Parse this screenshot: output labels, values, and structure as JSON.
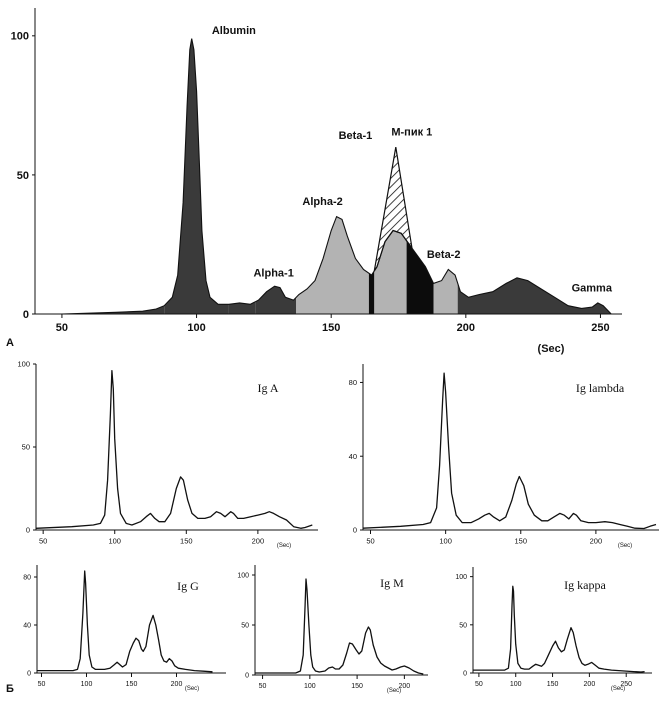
{
  "panel_labels": {
    "a": "A",
    "b": "Б"
  },
  "colors": {
    "ink": "#111111",
    "dark_fill": "#3a3a3a",
    "light_fill": "#b3b3b3",
    "black_fill": "#0c0c0c"
  },
  "chart_data": [
    {
      "id": "A",
      "type": "area",
      "title": "",
      "xlabel": "(Sec)",
      "ylabel": "",
      "xlim": [
        40,
        258
      ],
      "ylim": [
        0,
        110
      ],
      "xticks": [
        50,
        100,
        150,
        200,
        250
      ],
      "yticks": [
        0,
        50,
        100
      ],
      "grid": false,
      "fractions": [
        {
          "name": "",
          "x_range": [
            50,
            88
          ],
          "fill": "dark"
        },
        {
          "name": "Albumin",
          "x_range": [
            88,
            112
          ],
          "fill": "dark"
        },
        {
          "name": "",
          "x_range": [
            112,
            122
          ],
          "fill": "dark"
        },
        {
          "name": "Alpha-1",
          "x_range": [
            122,
            137
          ],
          "fill": "dark"
        },
        {
          "name": "Alpha-2",
          "x_range": [
            137,
            164
          ],
          "fill": "light"
        },
        {
          "name": "",
          "x_range": [
            164,
            166
          ],
          "fill": "black"
        },
        {
          "name": "Beta-1",
          "x_range": [
            166,
            178
          ],
          "fill": "light"
        },
        {
          "name": "",
          "x_range": [
            178,
            188
          ],
          "fill": "black"
        },
        {
          "name": "Beta-2",
          "x_range": [
            188,
            197
          ],
          "fill": "light"
        },
        {
          "name": "Gamma",
          "x_range": [
            197,
            256
          ],
          "fill": "dark"
        }
      ],
      "points": [
        [
          50,
          0
        ],
        [
          60,
          0.3
        ],
        [
          70,
          0.6
        ],
        [
          80,
          1
        ],
        [
          85,
          1.8
        ],
        [
          88,
          3
        ],
        [
          91,
          6
        ],
        [
          93,
          14
        ],
        [
          95,
          40
        ],
        [
          96.5,
          75
        ],
        [
          97.5,
          95
        ],
        [
          98.2,
          99
        ],
        [
          99,
          95
        ],
        [
          100,
          80
        ],
        [
          101,
          55
        ],
        [
          102,
          30
        ],
        [
          103.5,
          12
        ],
        [
          105,
          6
        ],
        [
          108,
          3.5
        ],
        [
          112,
          3.5
        ],
        [
          116,
          4
        ],
        [
          120,
          3.5
        ],
        [
          123,
          5
        ],
        [
          126,
          8
        ],
        [
          129,
          10
        ],
        [
          131,
          9.5
        ],
        [
          133,
          6
        ],
        [
          136,
          5
        ],
        [
          138,
          7
        ],
        [
          141,
          9
        ],
        [
          144,
          12
        ],
        [
          147,
          20
        ],
        [
          150,
          30
        ],
        [
          152,
          35
        ],
        [
          154,
          34
        ],
        [
          156,
          28
        ],
        [
          159,
          20
        ],
        [
          162,
          16
        ],
        [
          165,
          14
        ],
        [
          167,
          17
        ],
        [
          170,
          26
        ],
        [
          173,
          30
        ],
        [
          176,
          29
        ],
        [
          179,
          25
        ],
        [
          182,
          21
        ],
        [
          185,
          17
        ],
        [
          188,
          11
        ],
        [
          191,
          12
        ],
        [
          193.5,
          16
        ],
        [
          196,
          14
        ],
        [
          198,
          8
        ],
        [
          201,
          6
        ],
        [
          205,
          7
        ],
        [
          210,
          8
        ],
        [
          215,
          11
        ],
        [
          219,
          13
        ],
        [
          223,
          12
        ],
        [
          228,
          9
        ],
        [
          233,
          6
        ],
        [
          238,
          3
        ],
        [
          243,
          2
        ],
        [
          247,
          2.5
        ],
        [
          249,
          4
        ],
        [
          251,
          3
        ],
        [
          254,
          0
        ]
      ],
      "m_spike": {
        "name": "M-пик 1",
        "x_range": [
          166,
          180
        ],
        "peak_x": 174,
        "peak_y": 60,
        "fill": "hatched"
      },
      "annotations": [
        {
          "text": "Albumin",
          "x": 99,
          "y": 100
        },
        {
          "text": "Alpha-1",
          "x": 129,
          "y": 12
        },
        {
          "text": "Alpha-2",
          "x": 152,
          "y": 37
        },
        {
          "text": "Beta-1",
          "x": 159,
          "y": 60
        },
        {
          "text": "M-пик 1",
          "x": 174,
          "y": 62
        },
        {
          "text": "Beta-2",
          "x": 194,
          "y": 18
        },
        {
          "text": "Gamma",
          "x": 249,
          "y": 6
        }
      ]
    },
    {
      "id": "IgA",
      "type": "line",
      "title": "Ig A",
      "xlabel": "(Sec)",
      "ylabel": "",
      "xlim": [
        45,
        242
      ],
      "ylim": [
        0,
        100
      ],
      "xticks": [
        50,
        100,
        150,
        200
      ],
      "yticks": [
        0,
        50,
        100
      ],
      "grid": false,
      "points": [
        [
          45,
          1
        ],
        [
          70,
          2
        ],
        [
          85,
          3
        ],
        [
          90,
          4
        ],
        [
          93,
          9
        ],
        [
          95,
          30
        ],
        [
          97,
          70
        ],
        [
          98,
          96
        ],
        [
          99,
          85
        ],
        [
          100,
          55
        ],
        [
          102,
          25
        ],
        [
          104,
          10
        ],
        [
          108,
          4
        ],
        [
          112,
          3
        ],
        [
          118,
          5
        ],
        [
          122,
          8
        ],
        [
          125,
          10
        ],
        [
          128,
          7
        ],
        [
          131,
          5
        ],
        [
          135,
          5
        ],
        [
          139,
          10
        ],
        [
          143,
          25
        ],
        [
          146,
          32
        ],
        [
          148,
          30
        ],
        [
          151,
          18
        ],
        [
          154,
          10
        ],
        [
          158,
          7
        ],
        [
          163,
          7
        ],
        [
          167,
          8
        ],
        [
          171,
          11
        ],
        [
          174,
          10
        ],
        [
          177,
          8
        ],
        [
          181,
          11
        ],
        [
          183,
          10
        ],
        [
          186,
          7
        ],
        [
          190,
          7
        ],
        [
          195,
          8
        ],
        [
          200,
          9
        ],
        [
          205,
          10
        ],
        [
          208,
          11
        ],
        [
          211,
          10
        ],
        [
          215,
          8
        ],
        [
          220,
          6
        ],
        [
          225,
          2
        ],
        [
          230,
          1
        ],
        [
          233,
          1.5
        ],
        [
          238,
          3
        ]
      ]
    },
    {
      "id": "IgLambda",
      "type": "line",
      "title": "Ig lambda",
      "xlabel": "(Sec)",
      "ylabel": "",
      "xlim": [
        45,
        242
      ],
      "ylim": [
        0,
        90
      ],
      "xticks": [
        50,
        100,
        150,
        200
      ],
      "yticks": [
        0,
        40,
        80
      ],
      "grid": false,
      "points": [
        [
          45,
          1
        ],
        [
          70,
          2
        ],
        [
          85,
          3
        ],
        [
          90,
          4
        ],
        [
          94,
          12
        ],
        [
          96,
          35
        ],
        [
          98,
          70
        ],
        [
          99,
          85
        ],
        [
          100,
          75
        ],
        [
          102,
          45
        ],
        [
          104,
          20
        ],
        [
          107,
          8
        ],
        [
          111,
          4
        ],
        [
          117,
          4
        ],
        [
          122,
          6
        ],
        [
          126,
          8
        ],
        [
          129,
          9
        ],
        [
          132,
          7
        ],
        [
          136,
          5
        ],
        [
          140,
          7
        ],
        [
          144,
          16
        ],
        [
          147,
          25
        ],
        [
          149,
          29
        ],
        [
          152,
          24
        ],
        [
          155,
          14
        ],
        [
          159,
          8
        ],
        [
          164,
          5
        ],
        [
          168,
          5
        ],
        [
          172,
          7
        ],
        [
          176,
          9
        ],
        [
          179,
          8
        ],
        [
          182,
          6
        ],
        [
          185,
          9
        ],
        [
          187,
          8
        ],
        [
          190,
          5
        ],
        [
          195,
          4
        ],
        [
          200,
          4
        ],
        [
          206,
          4.5
        ],
        [
          211,
          4
        ],
        [
          216,
          3
        ],
        [
          221,
          2
        ],
        [
          226,
          1
        ],
        [
          232,
          0.8
        ],
        [
          236,
          2
        ],
        [
          240,
          3
        ]
      ]
    },
    {
      "id": "IgG",
      "type": "line",
      "title": "Ig G",
      "xlabel": "(Sec)",
      "ylabel": "",
      "xlim": [
        45,
        255
      ],
      "ylim": [
        0,
        90
      ],
      "xticks": [
        50,
        100,
        150,
        200
      ],
      "yticks": [
        0,
        40,
        80
      ],
      "grid": false,
      "points": [
        [
          45,
          2
        ],
        [
          60,
          2
        ],
        [
          75,
          2
        ],
        [
          85,
          2
        ],
        [
          90,
          3
        ],
        [
          93,
          12
        ],
        [
          96,
          50
        ],
        [
          98,
          85
        ],
        [
          99,
          75
        ],
        [
          101,
          40
        ],
        [
          103,
          15
        ],
        [
          106,
          5
        ],
        [
          110,
          3
        ],
        [
          115,
          3
        ],
        [
          120,
          3
        ],
        [
          126,
          4
        ],
        [
          131,
          7
        ],
        [
          134,
          9
        ],
        [
          137,
          7
        ],
        [
          140,
          5
        ],
        [
          144,
          7
        ],
        [
          148,
          18
        ],
        [
          152,
          25
        ],
        [
          155,
          29
        ],
        [
          158,
          27
        ],
        [
          161,
          20
        ],
        [
          163,
          18
        ],
        [
          166,
          22
        ],
        [
          170,
          40
        ],
        [
          174,
          48
        ],
        [
          177,
          40
        ],
        [
          180,
          28
        ],
        [
          183,
          15
        ],
        [
          186,
          10
        ],
        [
          189,
          9
        ],
        [
          192,
          12
        ],
        [
          195,
          10
        ],
        [
          198,
          6
        ],
        [
          202,
          4
        ],
        [
          210,
          3
        ],
        [
          220,
          2
        ],
        [
          230,
          1.5
        ],
        [
          240,
          1
        ]
      ]
    },
    {
      "id": "IgM",
      "type": "line",
      "title": "Ig M",
      "xlabel": "(Sec)",
      "ylabel": "",
      "xlim": [
        42,
        225
      ],
      "ylim": [
        0,
        110
      ],
      "xticks": [
        50,
        100,
        150,
        200
      ],
      "yticks": [
        0,
        50,
        100
      ],
      "grid": false,
      "points": [
        [
          42,
          2
        ],
        [
          60,
          2
        ],
        [
          75,
          2
        ],
        [
          85,
          2
        ],
        [
          90,
          4
        ],
        [
          93,
          20
        ],
        [
          95,
          70
        ],
        [
          96,
          96
        ],
        [
          97,
          85
        ],
        [
          99,
          50
        ],
        [
          101,
          20
        ],
        [
          103,
          8
        ],
        [
          106,
          4
        ],
        [
          110,
          3
        ],
        [
          116,
          4
        ],
        [
          120,
          7
        ],
        [
          124,
          8
        ],
        [
          127,
          6
        ],
        [
          131,
          6
        ],
        [
          135,
          10
        ],
        [
          139,
          22
        ],
        [
          142,
          32
        ],
        [
          145,
          31
        ],
        [
          149,
          25
        ],
        [
          152,
          21
        ],
        [
          155,
          24
        ],
        [
          159,
          42
        ],
        [
          162,
          48
        ],
        [
          164,
          45
        ],
        [
          167,
          30
        ],
        [
          171,
          18
        ],
        [
          175,
          12
        ],
        [
          179,
          9
        ],
        [
          183,
          7
        ],
        [
          187,
          5
        ],
        [
          191,
          6
        ],
        [
          196,
          8
        ],
        [
          200,
          9
        ],
        [
          205,
          7
        ],
        [
          210,
          4
        ],
        [
          215,
          2
        ],
        [
          220,
          1
        ]
      ]
    },
    {
      "id": "IgKappa",
      "type": "line",
      "title": "Ig kappa",
      "xlabel": "(Sec)",
      "ylabel": "",
      "xlim": [
        42,
        285
      ],
      "ylim": [
        0,
        110
      ],
      "xticks": [
        50,
        100,
        150,
        200,
        250
      ],
      "yticks": [
        0,
        50,
        100
      ],
      "grid": false,
      "points": [
        [
          42,
          3
        ],
        [
          60,
          3
        ],
        [
          75,
          3
        ],
        [
          85,
          3
        ],
        [
          90,
          5
        ],
        [
          93,
          25
        ],
        [
          95,
          70
        ],
        [
          96,
          90
        ],
        [
          97,
          85
        ],
        [
          98,
          60
        ],
        [
          100,
          30
        ],
        [
          103,
          10
        ],
        [
          107,
          5
        ],
        [
          112,
          4
        ],
        [
          118,
          4
        ],
        [
          123,
          7
        ],
        [
          127,
          9
        ],
        [
          131,
          8
        ],
        [
          135,
          7
        ],
        [
          139,
          10
        ],
        [
          144,
          18
        ],
        [
          150,
          28
        ],
        [
          154,
          33
        ],
        [
          158,
          26
        ],
        [
          162,
          22
        ],
        [
          166,
          24
        ],
        [
          170,
          35
        ],
        [
          175,
          47
        ],
        [
          178,
          42
        ],
        [
          182,
          28
        ],
        [
          186,
          16
        ],
        [
          190,
          10
        ],
        [
          194,
          8
        ],
        [
          198,
          9
        ],
        [
          203,
          11
        ],
        [
          208,
          8
        ],
        [
          213,
          5
        ],
        [
          220,
          4
        ],
        [
          230,
          3
        ],
        [
          240,
          2.5
        ],
        [
          250,
          2
        ],
        [
          260,
          1.5
        ],
        [
          270,
          1
        ],
        [
          275,
          1.5
        ]
      ]
    }
  ]
}
